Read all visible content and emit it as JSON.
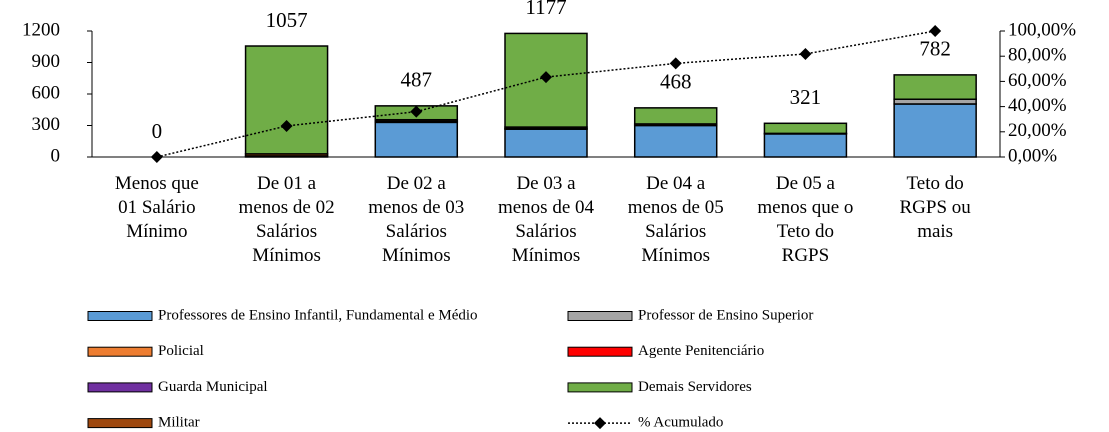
{
  "chart_data": {
    "type": "bar",
    "categories": [
      "Menos que\n01 Salário\nMínimo",
      "De 01 a\nmenos de 02\nSalários\nMínimos",
      "De 02 a\nmenos de 03\nSalários\nMínimos",
      "De 03 a\nmenos de 04\nSalários\nMínimos",
      "De 04 a\nmenos de 05\nSalários\nMínimos",
      "De 05 a\nmenos que o\nTeto do\nRGPS",
      "Teto do\nRGPS ou\nmais"
    ],
    "series": [
      {
        "name": "Professores de Ensino Infantil, Fundamental e Médio",
        "color": "#5b9bd5",
        "values": [
          0,
          10,
          330,
          265,
          300,
          220,
          505
        ]
      },
      {
        "name": "Professor de Ensino Superior",
        "color": "#a5a5a5",
        "values": [
          0,
          0,
          10,
          5,
          0,
          5,
          45
        ]
      },
      {
        "name": "Policial",
        "color": "#ed7d31",
        "values": [
          0,
          0,
          0,
          0,
          0,
          0,
          0
        ]
      },
      {
        "name": "Agente Penitenciário",
        "color": "#ff0000",
        "values": [
          0,
          0,
          0,
          0,
          0,
          0,
          0
        ]
      },
      {
        "name": "Guarda Municipal",
        "color": "#7030a0",
        "values": [
          0,
          0,
          0,
          0,
          0,
          0,
          0
        ]
      },
      {
        "name": "Militar",
        "color": "#9e480e",
        "values": [
          0,
          20,
          15,
          15,
          15,
          0,
          0
        ]
      },
      {
        "name": "Demais Servidores",
        "color": "#70ad47",
        "values": [
          0,
          1027,
          132,
          892,
          153,
          96,
          232
        ]
      },
      {
        "name": "% Acumulado",
        "type": "line",
        "axis": "y2",
        "color": "#000000",
        "values": [
          0,
          24.63,
          35.98,
          63.4,
          74.3,
          81.78,
          100
        ]
      }
    ],
    "total_labels": [
      0,
      1057,
      487,
      1177,
      468,
      321,
      782
    ],
    "ylim": [
      0,
      1200
    ],
    "yticks": [
      0,
      300,
      600,
      900,
      1200
    ],
    "y2lim": [
      0,
      100
    ],
    "y2ticks": [
      {
        "value": 0,
        "label": "0,00%"
      },
      {
        "value": 20,
        "label": "20,00%"
      },
      {
        "value": 40,
        "label": "40,00%"
      },
      {
        "value": 60,
        "label": "60,00%"
      },
      {
        "value": 80,
        "label": "80,00%"
      },
      {
        "value": 100,
        "label": "100,00%"
      }
    ],
    "grid": false,
    "legend": "bottom"
  }
}
